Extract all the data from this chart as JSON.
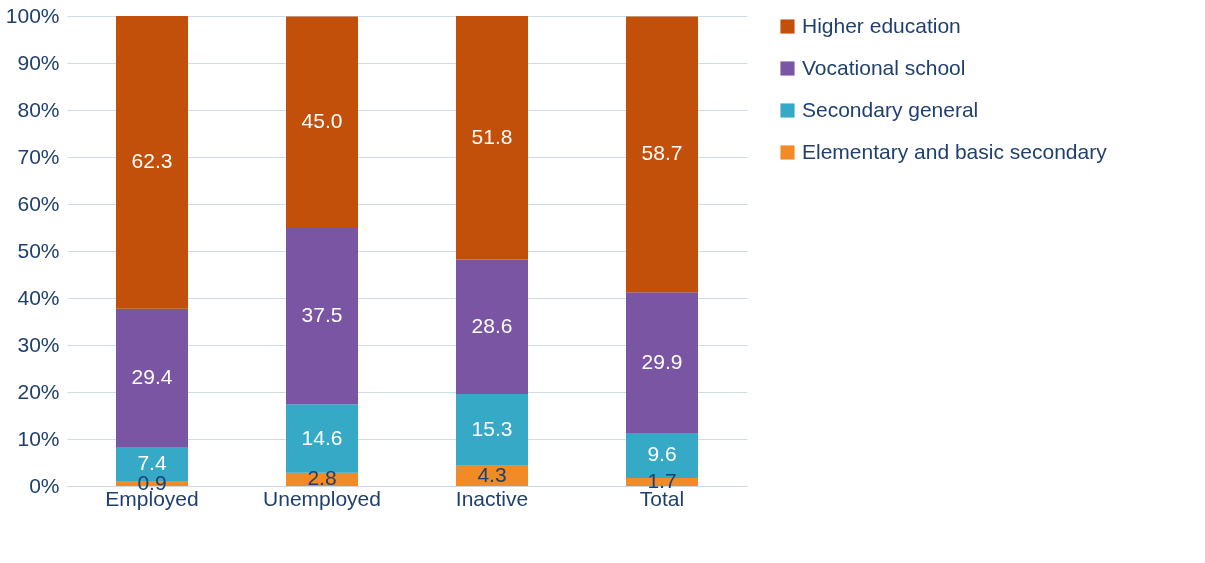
{
  "chart_data": {
    "type": "bar",
    "stacked": true,
    "categories": [
      "Employed",
      "Unemployed",
      "Inactive",
      "Total"
    ],
    "series": [
      {
        "name": "Elementary and basic secondary",
        "color": "#f28a26",
        "values": [
          0.9,
          2.8,
          4.3,
          1.7
        ],
        "value_labels": [
          "0.9",
          "2.8",
          "4.3",
          "1.7"
        ]
      },
      {
        "name": "Secondary general",
        "color": "#35a9c6",
        "values": [
          7.4,
          14.6,
          15.3,
          9.6
        ],
        "value_labels": [
          "7.4",
          "14.6",
          "15.3",
          "9.6"
        ]
      },
      {
        "name": "Vocational school",
        "color": "#7a55a3",
        "values": [
          29.4,
          37.5,
          28.6,
          29.9
        ],
        "value_labels": [
          "29.4",
          "37.5",
          "28.6",
          "29.9"
        ]
      },
      {
        "name": "Higher education",
        "color": "#c2500a",
        "values": [
          62.3,
          45.0,
          51.8,
          58.7
        ],
        "value_labels": [
          "62.3",
          "45.0",
          "51.8",
          "58.7"
        ]
      }
    ],
    "ylim": [
      0,
      100
    ],
    "yticks": [
      {
        "value": 0,
        "label": "0%"
      },
      {
        "value": 10,
        "label": "10%"
      },
      {
        "value": 20,
        "label": "20%"
      },
      {
        "value": 30,
        "label": "30%"
      },
      {
        "value": 40,
        "label": "40%"
      },
      {
        "value": 50,
        "label": "50%"
      },
      {
        "value": 60,
        "label": "60%"
      },
      {
        "value": 70,
        "label": "70%"
      },
      {
        "value": 80,
        "label": "80%"
      },
      {
        "value": 90,
        "label": "90%"
      },
      {
        "value": 100,
        "label": "100%"
      }
    ],
    "grid": "y",
    "legend": "right"
  }
}
